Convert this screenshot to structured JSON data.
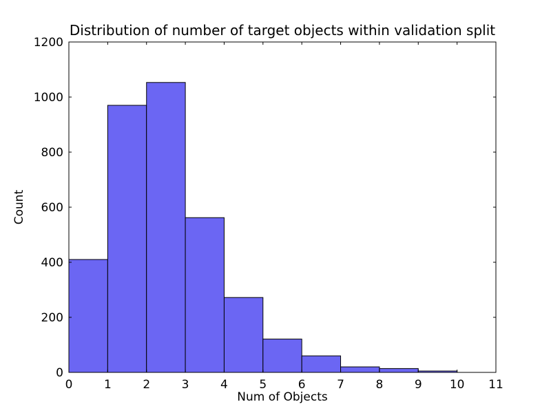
{
  "chart_data": {
    "type": "bar",
    "title": "Distribution of number of target objects within validation split",
    "xlabel": "Num of Objects",
    "ylabel": "Count",
    "bin_left_edges": [
      0,
      1,
      2,
      3,
      4,
      5,
      6,
      7,
      8,
      9
    ],
    "bin_width": 1,
    "counts": [
      410,
      970,
      1053,
      562,
      272,
      121,
      60,
      20,
      14,
      5
    ],
    "xlim": [
      0,
      11
    ],
    "ylim": [
      0,
      1200
    ],
    "x_ticks": [
      0,
      1,
      2,
      3,
      4,
      5,
      6,
      7,
      8,
      9,
      10,
      11
    ],
    "y_ticks": [
      0,
      200,
      400,
      600,
      800,
      1000,
      1200
    ],
    "bar_fill_color": "#6b66f3",
    "bar_edge_color": "#000000",
    "frame_color": "#000000",
    "text_color": "#000000",
    "background_color": "#ffffff",
    "grid": false,
    "legend_position": null
  }
}
